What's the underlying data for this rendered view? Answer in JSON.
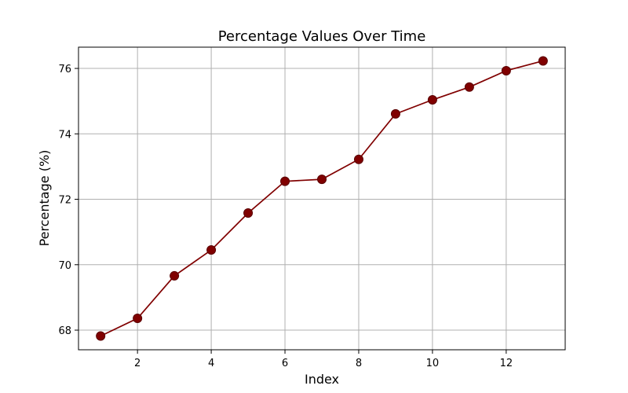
{
  "chart_data": {
    "type": "line",
    "title": "Percentage Values Over Time",
    "xlabel": "Index",
    "ylabel": "Percentage (%)",
    "x": [
      1,
      2,
      3,
      4,
      5,
      6,
      7,
      8,
      9,
      10,
      11,
      12,
      13
    ],
    "series": [
      {
        "values": [
          67.82,
          68.36,
          69.66,
          70.45,
          71.58,
          72.55,
          72.61,
          73.22,
          74.61,
          75.04,
          75.43,
          75.93,
          76.23
        ]
      }
    ],
    "xlim": [
      0.4,
      13.6
    ],
    "ylim": [
      67.4,
      76.65
    ],
    "xticks": [
      2,
      4,
      6,
      8,
      10,
      12
    ],
    "yticks": [
      68,
      70,
      72,
      74,
      76
    ],
    "grid": true,
    "color": "#800000"
  }
}
